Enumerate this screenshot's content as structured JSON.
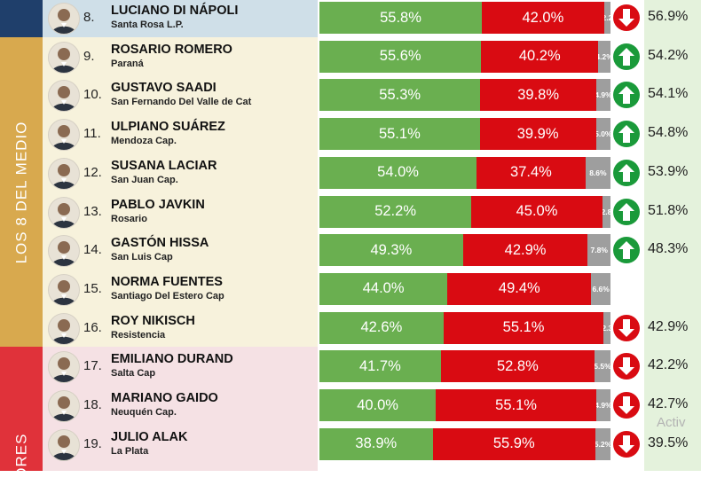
{
  "sections": [
    {
      "label": "",
      "color": "#1f3f6b",
      "first_row": 0,
      "last_row": 0
    },
    {
      "label": "LOS 8 DEL MEDIO",
      "color": "#d8a94e",
      "first_row": 1,
      "last_row": 8
    },
    {
      "label": "PEORES",
      "color": "#e0323a",
      "first_row": 9,
      "last_row": 11
    }
  ],
  "row_colors": {
    "highlight": "#cfdfe8",
    "middle": "#f7f2dc",
    "worst": "#f5e1e4"
  },
  "colors": {
    "green": "#6aaf50",
    "red": "#d90b12",
    "grey": "#9e9e9e",
    "up": "#1a9a3a",
    "down": "#d90b12"
  },
  "watermark": "Activ",
  "chart_data": {
    "type": "bar",
    "stacked": true,
    "orientation": "horizontal",
    "categories": [
      "LUCIANO DI NÁPOLI",
      "ROSARIO ROMERO",
      "GUSTAVO SAADI",
      "ULPIANO SUÁREZ",
      "SUSANA LACIAR",
      "PABLO JAVKIN",
      "GASTÓN HISSA",
      "NORMA FUENTES",
      "ROY NIKISCH",
      "EMILIANO DURAND",
      "MARIANO GAIDO",
      "JULIO ALAK"
    ],
    "series": [
      {
        "color": "#6aaf50",
        "values": [
          55.8,
          55.6,
          55.3,
          55.1,
          54.0,
          52.2,
          49.3,
          44.0,
          42.6,
          41.7,
          40.0,
          38.9
        ]
      },
      {
        "color": "#d90b12",
        "values": [
          42.0,
          40.2,
          39.8,
          39.9,
          37.4,
          45.0,
          42.9,
          49.4,
          55.1,
          52.8,
          55.1,
          55.9
        ]
      },
      {
        "color": "#9e9e9e",
        "values": [
          2.2,
          4.2,
          4.9,
          5.0,
          8.6,
          2.8,
          7.8,
          6.6,
          2.3,
          5.5,
          4.9,
          5.2
        ]
      }
    ],
    "rows": [
      {
        "rank": "8.",
        "name": "LUCIANO DI NÁPOLI",
        "city": "Santa Rosa L.P.",
        "green": "55.8%",
        "red": "42.0%",
        "grey": "2.2",
        "trend": "down",
        "approval": "56.9%"
      },
      {
        "rank": "9.",
        "name": "ROSARIO ROMERO",
        "city": "Paraná",
        "green": "55.6%",
        "red": "40.2%",
        "grey": "4.2%",
        "trend": "up",
        "approval": "54.2%"
      },
      {
        "rank": "10.",
        "name": "GUSTAVO SAADI",
        "city": "San Fernando Del Valle de Cat",
        "green": "55.3%",
        "red": "39.8%",
        "grey": "4.9%",
        "trend": "up",
        "approval": "54.1%"
      },
      {
        "rank": "11.",
        "name": "ULPIANO SUÁREZ",
        "city": "Mendoza Cap.",
        "green": "55.1%",
        "red": "39.9%",
        "grey": "5.0%",
        "trend": "up",
        "approval": "54.8%"
      },
      {
        "rank": "12.",
        "name": "SUSANA LACIAR",
        "city": "San Juan Cap.",
        "green": "54.0%",
        "red": "37.4%",
        "grey": "8.6%",
        "trend": "up",
        "approval": "53.9%"
      },
      {
        "rank": "13.",
        "name": "PABLO JAVKIN",
        "city": "Rosario",
        "green": "52.2%",
        "red": "45.0%",
        "grey": "2.8",
        "trend": "up",
        "approval": "51.8%"
      },
      {
        "rank": "14.",
        "name": "GASTÓN HISSA",
        "city": "San Luis Cap",
        "green": "49.3%",
        "red": "42.9%",
        "grey": "7.8%",
        "trend": "up",
        "approval": "48.3%"
      },
      {
        "rank": "15.",
        "name": "NORMA FUENTES",
        "city": "Santiago Del Estero Cap",
        "green": "44.0%",
        "red": "49.4%",
        "grey": "6.6%",
        "trend": "none",
        "approval": ""
      },
      {
        "rank": "16.",
        "name": "ROY NIKISCH",
        "city": "Resistencia",
        "green": "42.6%",
        "red": "55.1%",
        "grey": "2.3",
        "trend": "down",
        "approval": "42.9%"
      },
      {
        "rank": "17.",
        "name": "EMILIANO DURAND",
        "city": "Salta Cap",
        "green": "41.7%",
        "red": "52.8%",
        "grey": "5.5%",
        "trend": "down",
        "approval": "42.2%"
      },
      {
        "rank": "18.",
        "name": "MARIANO GAIDO",
        "city": "Neuquén Cap.",
        "green": "40.0%",
        "red": "55.1%",
        "grey": "4.9%",
        "trend": "down",
        "approval": "42.7%"
      },
      {
        "rank": "19.",
        "name": "JULIO ALAK",
        "city": "La Plata",
        "green": "38.9%",
        "red": "55.9%",
        "grey": "5.2%",
        "trend": "down",
        "approval": "39.5%"
      }
    ]
  }
}
